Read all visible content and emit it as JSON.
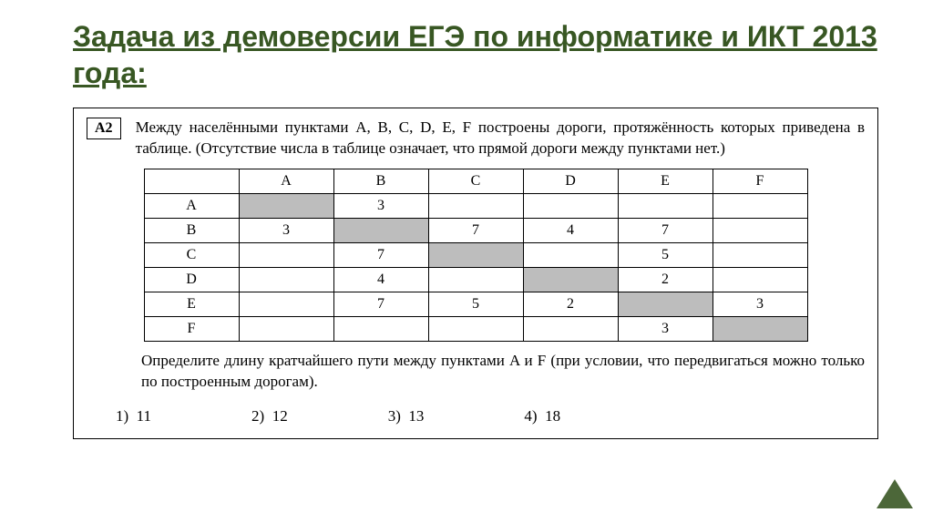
{
  "title": "Задача из демоверсии ЕГЭ по информатике и ИКТ 2013 года:",
  "badge": "А2",
  "intro": "Между населёнными пунктами A, B, C, D, E, F построены дороги, протяжённость которых приведена в таблице. (Отсутствие числа в таблице означает, что прямой дороги между пунктами нет.)",
  "table": {
    "headers": [
      "",
      "A",
      "B",
      "C",
      "D",
      "E",
      "F"
    ],
    "rows": [
      {
        "label": "A",
        "cells": [
          {
            "shaded": true
          },
          {
            "v": "3"
          },
          {},
          {},
          {},
          {}
        ]
      },
      {
        "label": "B",
        "cells": [
          {
            "v": "3"
          },
          {
            "shaded": true
          },
          {
            "v": "7"
          },
          {
            "v": "4"
          },
          {
            "v": "7"
          },
          {}
        ]
      },
      {
        "label": "C",
        "cells": [
          {},
          {
            "v": "7"
          },
          {
            "shaded": true
          },
          {},
          {
            "v": "5"
          },
          {}
        ]
      },
      {
        "label": "D",
        "cells": [
          {},
          {
            "v": "4"
          },
          {},
          {
            "shaded": true
          },
          {
            "v": "2"
          },
          {}
        ]
      },
      {
        "label": "E",
        "cells": [
          {},
          {
            "v": "7"
          },
          {
            "v": "5"
          },
          {
            "v": "2"
          },
          {
            "shaded": true
          },
          {
            "v": "3"
          }
        ]
      },
      {
        "label": "F",
        "cells": [
          {},
          {},
          {},
          {},
          {
            "v": "3"
          },
          {
            "shaded": true
          }
        ]
      }
    ]
  },
  "question": "Определите длину кратчайшего пути между пунктами A и F (при условии, что передвигаться можно только по построенным дорогам).",
  "answers": [
    {
      "n": "1)",
      "v": "11"
    },
    {
      "n": "2)",
      "v": "12"
    },
    {
      "n": "3)",
      "v": "13"
    },
    {
      "n": "4)",
      "v": "18"
    }
  ],
  "colors": {
    "accent": "#385723",
    "shaded": "#bdbdbd",
    "border": "#000000",
    "bg": "#ffffff"
  }
}
